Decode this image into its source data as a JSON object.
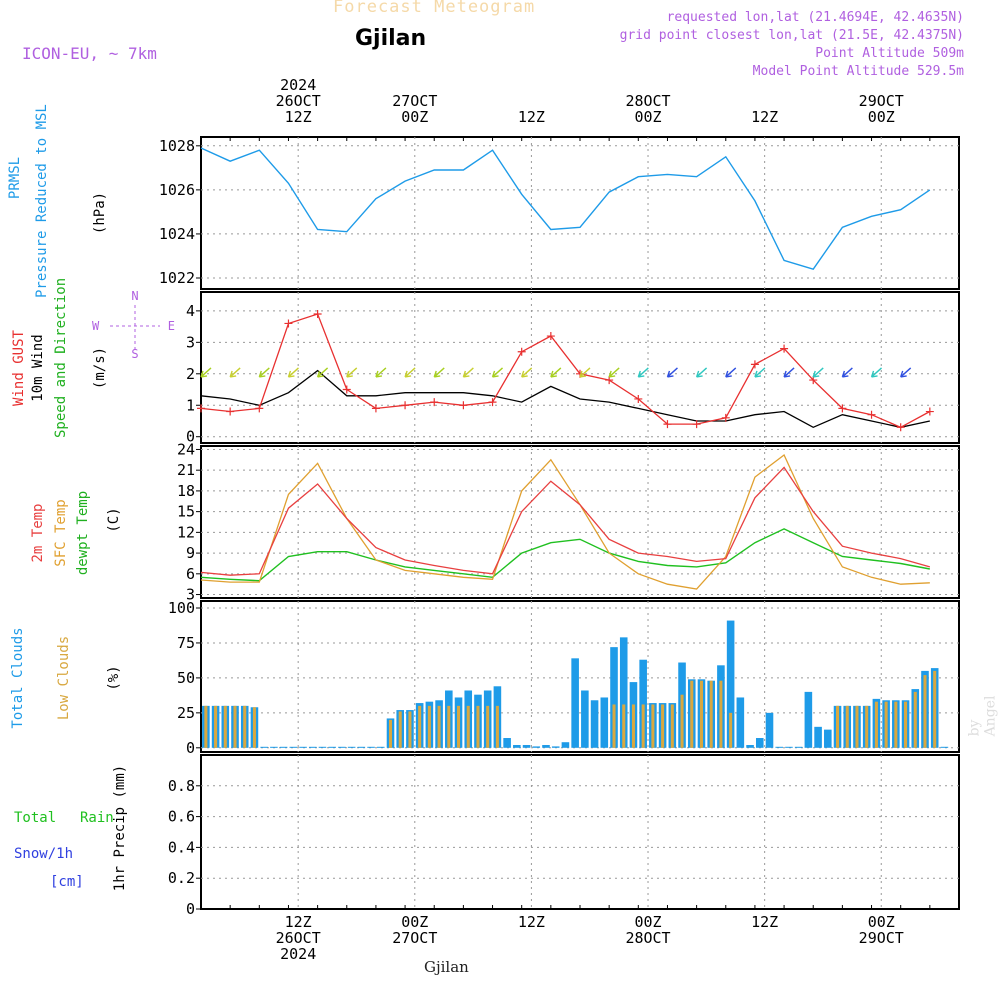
{
  "header": {
    "forecast_label": "Forecast Meteogram",
    "location": "Gjilan",
    "model": "ICON-EU, ~ 7km",
    "requested": "requested lon,lat (21.4694E, 42.4635N)",
    "grid_point": "grid point closest lon,lat (21.5E, 42.4375N)",
    "point_altitude": "Point Altitude 509m",
    "model_altitude": "Model Point Altitude 529.5m"
  },
  "top_axis": [
    {
      "l1": "2024",
      "l2": "26OCT",
      "l3": "12Z"
    },
    {
      "l1": "",
      "l2": "27OCT",
      "l3": "00Z"
    },
    {
      "l1": "",
      "l2": "",
      "l3": "12Z"
    },
    {
      "l1": "",
      "l2": "28OCT",
      "l3": "00Z"
    },
    {
      "l1": "",
      "l2": "",
      "l3": "12Z"
    },
    {
      "l1": "",
      "l2": "29OCT",
      "l3": "00Z"
    }
  ],
  "bottom_axis": [
    {
      "l1": "12Z",
      "l2": "26OCT",
      "l3": "2024"
    },
    {
      "l1": "00Z",
      "l2": "27OCT",
      "l3": ""
    },
    {
      "l1": "12Z",
      "l2": "",
      "l3": ""
    },
    {
      "l1": "00Z",
      "l2": "28OCT",
      "l3": ""
    },
    {
      "l1": "12Z",
      "l2": "",
      "l3": ""
    },
    {
      "l1": "00Z",
      "l2": "29OCT",
      "l3": ""
    }
  ],
  "footer_location": "Gjilan",
  "watermark": "by Angel",
  "panel_labels": {
    "pressure": {
      "a": "PRMSL",
      "b": "Pressure Reduced to MSL",
      "unit": "(hPa)"
    },
    "wind": {
      "a": "Wind GUST",
      "b": "10m Wind",
      "c": "Speed and Direction",
      "unit": "(m/s)",
      "compass_w": "W",
      "compass_e": "E",
      "compass_n": "N",
      "compass_s": "S"
    },
    "temp": {
      "a": "2m Temp",
      "b": "SFC Temp",
      "c": "dewpt Temp",
      "unit": "(C)"
    },
    "clouds": {
      "a": "Total Clouds",
      "b": "Low Clouds",
      "unit": "(%)"
    },
    "precip": {
      "a": "Total",
      "b": "Rain",
      "c": "Snow/1h",
      "d": "[cm]",
      "unit": "1hr Precip (mm)"
    }
  },
  "colors": {
    "pressure": "#1E9BE8",
    "gust": "#E83030",
    "wind": "#000000",
    "sfc": "#E0A030",
    "dewpt": "#20C020",
    "t2m": "#E84040",
    "total_cloud": "#1E9BE8",
    "low_cloud": "#D8A840",
    "grid": "#999999"
  },
  "chart_data": [
    {
      "type": "line",
      "title": "PRMSL Pressure Reduced to MSL",
      "ylabel": "(hPa)",
      "ylim": [
        1021.5,
        1028.4
      ],
      "yticks": [
        1022,
        1024,
        1026,
        1028
      ],
      "x_hours": [
        0,
        3,
        6,
        9,
        12,
        15,
        18,
        21,
        24,
        27,
        30,
        33,
        36,
        39,
        42,
        45,
        48,
        51,
        54,
        57,
        60,
        63,
        66,
        69,
        72,
        75
      ],
      "series": [
        {
          "name": "PRMSL",
          "values": [
            1027.9,
            1027.3,
            1027.8,
            1026.3,
            1024.2,
            1024.1,
            1025.6,
            1026.4,
            1026.9,
            1026.9,
            1027.8,
            1025.8,
            1024.2,
            1024.3,
            1025.9,
            1026.6,
            1026.7,
            1026.6,
            1027.5,
            1025.5,
            1022.8,
            1022.4,
            1024.3,
            1024.8,
            1025.1,
            1026.0
          ]
        }
      ]
    },
    {
      "type": "line",
      "title": "Wind GUST / 10m Wind Speed and Direction",
      "ylabel": "(m/s)",
      "ylim": [
        -0.2,
        4.6
      ],
      "yticks": [
        0,
        1,
        2,
        3,
        4
      ],
      "x_hours": [
        0,
        3,
        6,
        9,
        12,
        15,
        18,
        21,
        24,
        27,
        30,
        33,
        36,
        39,
        42,
        45,
        48,
        51,
        54,
        57,
        60,
        63,
        66,
        69,
        72,
        75
      ],
      "series": [
        {
          "name": "Wind GUST",
          "values": [
            0.9,
            0.8,
            0.9,
            3.6,
            3.9,
            1.5,
            0.9,
            1.0,
            1.1,
            1.0,
            1.1,
            2.7,
            3.2,
            2.0,
            1.8,
            1.2,
            0.4,
            0.4,
            0.6,
            2.3,
            2.8,
            1.8,
            0.9,
            0.7,
            0.3,
            0.8
          ]
        },
        {
          "name": "10m Wind",
          "values": [
            1.3,
            1.2,
            1.0,
            1.4,
            2.1,
            1.3,
            1.3,
            1.4,
            1.4,
            1.4,
            1.3,
            1.1,
            1.6,
            1.2,
            1.1,
            0.9,
            0.7,
            0.5,
            0.5,
            0.7,
            0.8,
            0.3,
            0.7,
            0.5,
            0.3,
            0.5
          ]
        }
      ]
    },
    {
      "type": "line",
      "title": "2m Temp / SFC Temp / dewpt Temp",
      "ylabel": "(C)",
      "ylim": [
        2.5,
        24.5
      ],
      "yticks": [
        3,
        6,
        9,
        12,
        15,
        18,
        21,
        24
      ],
      "x_hours": [
        0,
        3,
        6,
        9,
        12,
        15,
        18,
        21,
        24,
        27,
        30,
        33,
        36,
        39,
        42,
        45,
        48,
        51,
        54,
        57,
        60,
        63,
        66,
        69,
        72,
        75
      ],
      "series": [
        {
          "name": "2m Temp",
          "values": [
            6.2,
            5.8,
            6.0,
            15.5,
            19.0,
            14.0,
            9.8,
            8.0,
            7.2,
            6.5,
            6.0,
            15.0,
            19.4,
            16.0,
            11.0,
            9.0,
            8.5,
            7.8,
            8.2,
            17.0,
            21.4,
            15.0,
            10.0,
            9.0,
            8.2,
            7.0
          ]
        },
        {
          "name": "SFC Temp",
          "values": [
            5.1,
            4.8,
            4.8,
            17.5,
            22.0,
            14.0,
            8.0,
            6.5,
            6.0,
            5.5,
            5.2,
            18.0,
            22.5,
            16.0,
            9.0,
            6.0,
            4.5,
            3.8,
            8.5,
            20.0,
            23.2,
            14.0,
            7.0,
            5.5,
            4.5,
            4.7
          ]
        },
        {
          "name": "dewpt Temp",
          "values": [
            5.5,
            5.2,
            5.0,
            8.5,
            9.2,
            9.2,
            8.0,
            7.0,
            6.5,
            6.0,
            5.5,
            9.0,
            10.5,
            11.0,
            9.0,
            7.8,
            7.2,
            7.0,
            7.6,
            10.5,
            12.5,
            10.5,
            8.5,
            8.0,
            7.5,
            6.7
          ]
        }
      ]
    },
    {
      "type": "bar",
      "title": "Total Clouds / Low Clouds",
      "ylabel": "(%)",
      "ylim": [
        -3,
        105
      ],
      "yticks": [
        0,
        25,
        50,
        75,
        100
      ],
      "x_hours": [
        0,
        1,
        2,
        3,
        4,
        5,
        6,
        7,
        8,
        9,
        10,
        11,
        12,
        13,
        14,
        15,
        16,
        17,
        18,
        19,
        20,
        21,
        22,
        23,
        24,
        25,
        26,
        27,
        28,
        29,
        30,
        31,
        32,
        33,
        34,
        35,
        36,
        37,
        38,
        39,
        40,
        41,
        42,
        43,
        44,
        45,
        46,
        47,
        48,
        49,
        50,
        51,
        52,
        53,
        54,
        55,
        56,
        57,
        58,
        59,
        60,
        61,
        62,
        63,
        64,
        65,
        66,
        67,
        68,
        69,
        70,
        71,
        72,
        73,
        74,
        75,
        76
      ],
      "series": [
        {
          "name": "Total Clouds",
          "values": [
            30,
            30,
            30,
            30,
            30,
            29,
            0,
            0,
            0,
            0,
            0,
            0,
            0,
            0,
            0,
            0,
            0,
            0,
            0,
            21,
            27,
            27,
            32,
            33,
            34,
            41,
            36,
            41,
            38,
            41,
            44,
            7,
            2,
            2,
            1,
            2,
            1,
            4,
            64,
            41,
            34,
            36,
            72,
            79,
            47,
            63,
            32,
            32,
            32,
            61,
            49,
            49,
            48,
            59,
            91,
            36,
            2,
            7,
            25,
            0,
            0,
            0,
            40,
            15,
            13,
            30,
            30,
            30,
            30,
            35,
            34,
            34,
            34,
            42,
            55,
            57,
            0
          ]
        },
        {
          "name": "Low Clouds",
          "values": [
            30,
            30,
            30,
            30,
            30,
            29,
            0,
            0,
            0,
            0,
            0,
            0,
            0,
            0,
            0,
            0,
            0,
            0,
            0,
            20,
            26,
            26,
            30,
            30,
            30,
            30,
            30,
            30,
            30,
            30,
            30,
            0,
            0,
            0,
            0,
            0,
            0,
            0,
            0,
            0,
            0,
            0,
            31,
            31,
            31,
            31,
            31,
            31,
            31,
            38,
            48,
            48,
            48,
            48,
            25,
            0,
            0,
            0,
            0,
            0,
            0,
            0,
            0,
            0,
            0,
            30,
            30,
            30,
            30,
            33,
            33,
            33,
            33,
            40,
            52,
            55,
            0
          ]
        }
      ]
    },
    {
      "type": "bar",
      "title": "1hr Precip (mm)",
      "ylabel": "1hr Precip (mm)",
      "ylim": [
        0,
        1.0
      ],
      "yticks": [
        0,
        0.2,
        0.4,
        0.6,
        0.8
      ],
      "x_hours": [],
      "series": [
        {
          "name": "Total Rain",
          "values": []
        },
        {
          "name": "Snow/1h",
          "values": []
        }
      ]
    }
  ]
}
